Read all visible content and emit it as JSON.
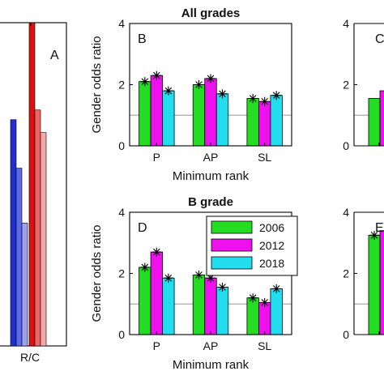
{
  "chart_data": [
    {
      "panel_letter": "A",
      "type": "bar",
      "categories": [
        "R/C"
      ],
      "series": [
        {
          "color": "#1f2fd0",
          "values": [
            null
          ]
        },
        {
          "color": "#5a6ae8",
          "values": [
            null
          ]
        },
        {
          "color": "#9aa4ee",
          "values": [
            null
          ]
        },
        {
          "color": "#dd1111",
          "values": [
            null
          ]
        },
        {
          "color": "#ee6666",
          "values": [
            null
          ]
        },
        {
          "color": "#f4a8a8",
          "values": [
            null
          ]
        }
      ],
      "bar_heights_relative": [
        0.7,
        0.55,
        0.38,
        1.0,
        0.73,
        0.66
      ],
      "grid": false,
      "note_partial": "cropped at left edge"
    },
    {
      "panel_letter": "B",
      "type": "bar",
      "title": "All grades",
      "xlabel": "Minimum rank",
      "ylabel": "Gender odds ratio",
      "categories": [
        "P",
        "AP",
        "SL"
      ],
      "ylim": [
        0,
        4
      ],
      "yticks": [
        "0",
        "2",
        "4"
      ],
      "reference_line": 1,
      "series": [
        {
          "name": "2006",
          "values": [
            2.1,
            2.0,
            1.55
          ]
        },
        {
          "name": "2012",
          "values": [
            2.3,
            2.2,
            1.45
          ]
        },
        {
          "name": "2018",
          "values": [
            1.8,
            1.7,
            1.65
          ]
        }
      ],
      "grid": false
    },
    {
      "panel_letter": "C",
      "type": "bar",
      "ylim": [
        0,
        4
      ],
      "yticks": [
        "0",
        "2",
        "4"
      ],
      "reference_line": 1,
      "series": [
        {
          "name": "2006",
          "values": [
            1.55
          ]
        },
        {
          "name": "2012",
          "values": [
            1.8
          ]
        }
      ],
      "note_partial": "cropped at right edge"
    },
    {
      "panel_letter": "D",
      "type": "bar",
      "title": "B grade",
      "xlabel": "Minimum rank",
      "ylabel": "Gender odds ratio",
      "categories": [
        "P",
        "AP",
        "SL"
      ],
      "ylim": [
        0,
        4
      ],
      "yticks": [
        "0",
        "2",
        "4"
      ],
      "reference_line": 1,
      "series": [
        {
          "name": "2006",
          "values": [
            2.2,
            1.95,
            1.2
          ]
        },
        {
          "name": "2012",
          "values": [
            2.7,
            1.85,
            1.05
          ]
        },
        {
          "name": "2018",
          "values": [
            1.85,
            1.55,
            1.5
          ]
        }
      ],
      "legend": {
        "placement": "top-right",
        "entries": [
          "2006",
          "2012",
          "2018"
        ]
      },
      "grid": false
    },
    {
      "panel_letter": "E",
      "type": "bar",
      "ylim": [
        0,
        4
      ],
      "yticks": [
        "0",
        "2",
        "4"
      ],
      "reference_line": 1,
      "series": [
        {
          "name": "2006",
          "values": [
            3.25
          ]
        },
        {
          "name": "2012",
          "values": [
            3.4
          ]
        }
      ],
      "note_partial": "cropped at right edge"
    }
  ],
  "colors": {
    "s2006": "#22dd22",
    "s2012": "#ee11ee",
    "s2018": "#22ddee",
    "reference": "#aaaaaa",
    "axis": "#000000"
  }
}
